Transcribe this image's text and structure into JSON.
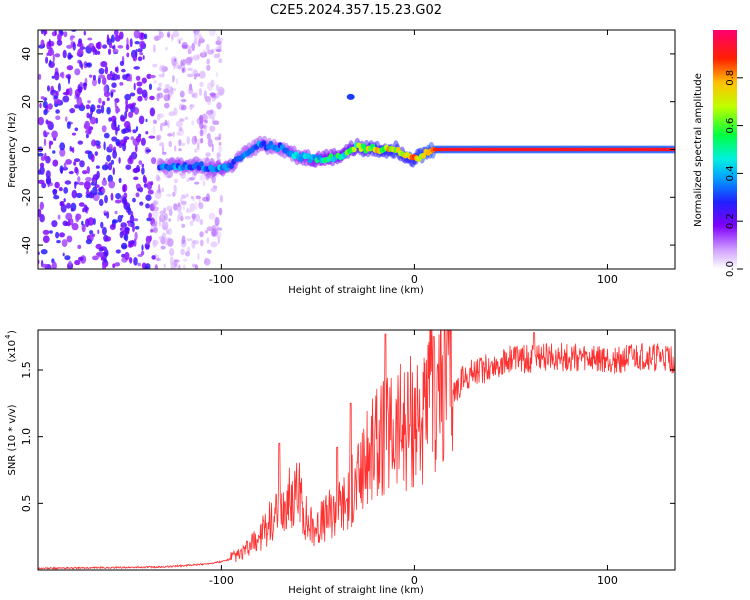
{
  "chart_data": [
    {
      "type": "heatmap",
      "title": "C2E5.2024.357.15.23.G02",
      "xlabel": "Height of straight line (km)",
      "ylabel": "Frequency (Hz)",
      "xlim": [
        -195,
        135
      ],
      "ylim": [
        -50,
        50
      ],
      "x_ticks": [
        -100,
        0,
        100
      ],
      "x_tick_labels": [
        "-100",
        "0",
        "100"
      ],
      "y_ticks": [
        -40,
        -20,
        0,
        20,
        40
      ],
      "y_tick_labels": [
        "-40",
        "-20",
        "0",
        "20",
        "40"
      ],
      "colorbar": {
        "label": "Normalized spectral amplitude",
        "range": [
          0,
          1
        ],
        "ticks": [
          0,
          0.2,
          0.4,
          0.6,
          0.8
        ],
        "tick_labels": [
          "0.0",
          "0.2",
          "0.4",
          "0.6",
          "0.8"
        ],
        "colormap": [
          "#ffffff",
          "#b060ff",
          "#4000ff",
          "#0040ff",
          "#00e0ff",
          "#00ff40",
          "#c0ff00",
          "#ffd000",
          "#ff2000",
          "#ff0080"
        ]
      },
      "ridge": {
        "x": [
          -132,
          -120,
          -110,
          -100,
          -95,
          -90,
          -80,
          -70,
          -60,
          -50,
          -40,
          -30,
          -20,
          -10,
          -5,
          0,
          5,
          10,
          20,
          40,
          60,
          80,
          100,
          120,
          135
        ],
        "freq": [
          -7,
          -7,
          -7,
          -8,
          -7,
          -3,
          2,
          1,
          -3,
          -4,
          -3,
          1,
          0,
          0,
          -2,
          -4,
          -2,
          0,
          0,
          0,
          0,
          0,
          0,
          0,
          0
        ],
        "amplitude": [
          0.35,
          0.4,
          0.35,
          0.45,
          0.4,
          0.35,
          0.4,
          0.35,
          0.45,
          0.5,
          0.55,
          0.65,
          0.75,
          0.8,
          0.75,
          0.8,
          0.85,
          0.9,
          0.92,
          0.92,
          0.92,
          0.92,
          0.92,
          0.92,
          0.92
        ]
      },
      "features": [
        {
          "x": -33,
          "freq": 22,
          "amplitude": 0.3
        }
      ]
    },
    {
      "type": "line",
      "xlabel": "Height of straight line (km)",
      "ylabel": "SNR (10 * v/v)",
      "y_scale_label": "(x10",
      "y_scale_exponent": "4",
      "xlim": [
        -195,
        135
      ],
      "ylim": [
        0,
        1.8
      ],
      "x_ticks": [
        -100,
        0,
        100
      ],
      "x_tick_labels": [
        "-100",
        "0",
        "100"
      ],
      "y_ticks": [
        0.5,
        1.0,
        1.5
      ],
      "y_tick_labels": [
        "0.5",
        "1.0",
        "1.5"
      ],
      "series": [
        {
          "color": "#ff3030",
          "x": [
            -195,
            -160,
            -130,
            -110,
            -100,
            -95,
            -90,
            -85,
            -80,
            -75,
            -70,
            -65,
            -60,
            -55,
            -50,
            -45,
            -40,
            -35,
            -30,
            -25,
            -20,
            -15,
            -10,
            -5,
            0,
            5,
            10,
            15,
            20,
            25,
            30,
            40,
            50,
            60,
            70,
            80,
            90,
            100,
            110,
            120,
            135
          ],
          "y": [
            0.01,
            0.015,
            0.02,
            0.04,
            0.06,
            0.08,
            0.1,
            0.15,
            0.22,
            0.3,
            0.35,
            0.45,
            0.5,
            0.3,
            0.28,
            0.35,
            0.4,
            0.45,
            0.55,
            0.7,
            0.8,
            0.85,
            0.9,
            0.95,
            1.0,
            0.95,
            1.15,
            1.25,
            1.35,
            1.45,
            1.5,
            1.55,
            1.6,
            1.6,
            1.62,
            1.62,
            1.6,
            1.6,
            1.6,
            1.62,
            1.6
          ],
          "spikes": [
            {
              "x": -70,
              "y": 0.95
            },
            {
              "x": -40,
              "y": 0.92
            },
            {
              "x": -33,
              "y": 1.25
            },
            {
              "x": -15,
              "y": 1.77
            },
            {
              "x": 10,
              "y": 1.75
            },
            {
              "x": 62,
              "y": 1.78
            }
          ]
        }
      ]
    }
  ]
}
